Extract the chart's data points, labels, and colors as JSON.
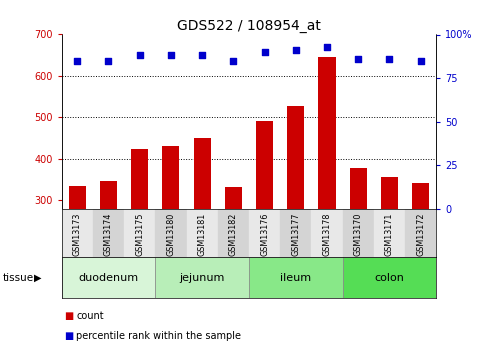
{
  "title": "GDS522 / 108954_at",
  "samples": [
    "GSM13173",
    "GSM13174",
    "GSM13175",
    "GSM13180",
    "GSM13181",
    "GSM13182",
    "GSM13176",
    "GSM13177",
    "GSM13178",
    "GSM13170",
    "GSM13171",
    "GSM13172"
  ],
  "counts": [
    335,
    348,
    425,
    432,
    450,
    333,
    492,
    527,
    645,
    378,
    356,
    342
  ],
  "percentiles": [
    85,
    85,
    88,
    88,
    88,
    85,
    90,
    91,
    93,
    86,
    86,
    85
  ],
  "tissue_groups": [
    {
      "label": "duodenum",
      "start": 0,
      "end": 3
    },
    {
      "label": "jejunum",
      "start": 3,
      "end": 6
    },
    {
      "label": "ileum",
      "start": 6,
      "end": 9
    },
    {
      "label": "colon",
      "start": 9,
      "end": 12
    }
  ],
  "tissue_colors": [
    "#d8f5d8",
    "#b8eeb8",
    "#88e888",
    "#55dd55"
  ],
  "bar_color": "#cc0000",
  "dot_color": "#0000cc",
  "ylim_left": [
    280,
    700
  ],
  "ylim_right": [
    0,
    100
  ],
  "yticks_left": [
    300,
    400,
    500,
    600,
    700
  ],
  "yticks_right": [
    0,
    25,
    50,
    75,
    100
  ],
  "grid_dotted_values": [
    400,
    500,
    600
  ],
  "legend_count_label": "count",
  "legend_percentile_label": "percentile rank within the sample",
  "tissue_label": "tissue",
  "tick_fontsize": 7,
  "title_fontsize": 10,
  "label_fontsize": 7.5,
  "tissue_fontsize": 8
}
